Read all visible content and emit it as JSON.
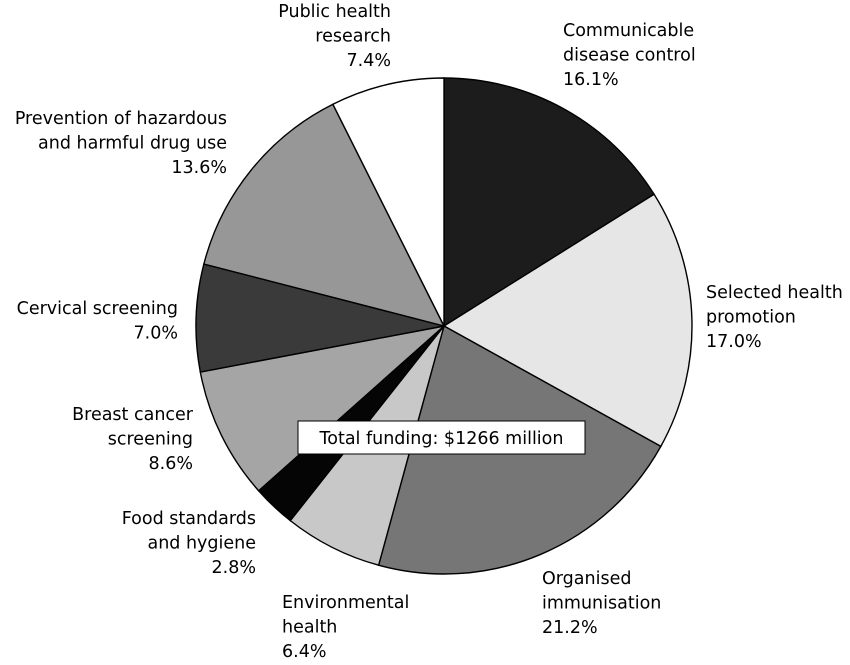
{
  "chart_data": {
    "type": "pie",
    "annotation": "Total funding: $1266 million",
    "slices": [
      {
        "label": [
          "Communicable",
          "disease control"
        ],
        "pct_label": "16.1%",
        "value": 16.1,
        "color": "#1c1c1c"
      },
      {
        "label": [
          "Selected health",
          "promotion"
        ],
        "pct_label": "17.0%",
        "value": 17.0,
        "color": "#e6e6e6"
      },
      {
        "label": [
          "Organised",
          "immunisation"
        ],
        "pct_label": "21.2%",
        "value": 21.2,
        "color": "#767676"
      },
      {
        "label": [
          "Environmental",
          "health"
        ],
        "pct_label": "6.4%",
        "value": 6.4,
        "color": "#c8c8c8"
      },
      {
        "label": [
          "Food standards",
          "and hygiene"
        ],
        "pct_label": "2.8%",
        "value": 2.8,
        "color": "#050505"
      },
      {
        "label": [
          "Breast cancer",
          "screening"
        ],
        "pct_label": "8.6%",
        "value": 8.6,
        "color": "#a5a5a5"
      },
      {
        "label": [
          "Cervical screening"
        ],
        "pct_label": "7.0%",
        "value": 7.0,
        "color": "#3a3a3a"
      },
      {
        "label": [
          "Prevention of hazardous",
          "and harmful drug use"
        ],
        "pct_label": "13.6%",
        "value": 13.6,
        "color": "#979797"
      },
      {
        "label": [
          "Public health",
          "research"
        ],
        "pct_label": "7.4%",
        "value": 7.4,
        "color": "#ffffff"
      }
    ]
  }
}
